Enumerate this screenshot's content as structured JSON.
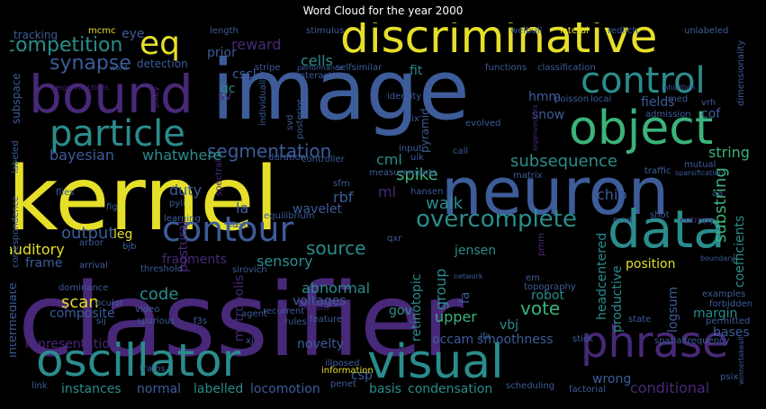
{
  "title": "Word Cloud for the year 2000",
  "colors": {
    "background": "#000000",
    "title": "#ffffff",
    "yellow": "#e6df2a",
    "blue": "#3d5c99",
    "teal": "#2b8c8c",
    "green": "#3bb37a",
    "purple": "#482878",
    "dark": "#30305a"
  },
  "words": [
    {
      "text": "classifier",
      "color": "#482878"
    },
    {
      "text": "kernel",
      "color": "#e6df2a"
    },
    {
      "text": "image",
      "color": "#3d5c99"
    },
    {
      "text": "neuron",
      "color": "#3d5c99"
    },
    {
      "text": "bound",
      "color": "#482878"
    },
    {
      "text": "discriminative",
      "color": "#e6df2a"
    },
    {
      "text": "object",
      "color": "#3bb37a"
    },
    {
      "text": "visual",
      "color": "#2b8c8c"
    },
    {
      "text": "oscillator",
      "color": "#2b8c8c"
    },
    {
      "text": "data",
      "color": "#2b8c8c"
    },
    {
      "text": "control",
      "color": "#2b8c8c"
    },
    {
      "text": "phrase",
      "color": "#482878"
    },
    {
      "text": "particle",
      "color": "#2b8c8c"
    },
    {
      "text": "contour",
      "color": "#3d5c99"
    },
    {
      "text": "eq",
      "color": "#e6df2a"
    },
    {
      "text": "overcomplete",
      "color": "#2b8c8c"
    },
    {
      "text": "competition",
      "color": "#2b8c8c"
    },
    {
      "text": "synapse",
      "color": "#3d5c99"
    },
    {
      "text": "segmentation",
      "color": "#3d5c99"
    },
    {
      "text": "subsequence",
      "color": "#2b8c8c"
    },
    {
      "text": "source",
      "color": "#2b8c8c"
    },
    {
      "text": "output",
      "color": "#3d5c99"
    },
    {
      "text": "spike",
      "color": "#3bb37a"
    },
    {
      "text": "reward",
      "color": "#482878"
    },
    {
      "text": "bayesian",
      "color": "#3d5c99"
    },
    {
      "text": "whatwhere",
      "color": "#2b8c8c"
    },
    {
      "text": "walk",
      "color": "#2b8c8c"
    },
    {
      "text": "string",
      "color": "#3bb37a"
    },
    {
      "text": "substring",
      "color": "#3bb37a"
    },
    {
      "text": "auditory",
      "color": "#e6df2a"
    },
    {
      "text": "scan",
      "color": "#e6df2a"
    },
    {
      "text": "vote",
      "color": "#3bb37a"
    },
    {
      "text": "code",
      "color": "#2b8c8c"
    },
    {
      "text": "sensory",
      "color": "#2b8c8c"
    },
    {
      "text": "abnormal",
      "color": "#2b8c8c"
    },
    {
      "text": "voltages",
      "color": "#3d5c99"
    },
    {
      "text": "group",
      "color": "#2b8c8c"
    },
    {
      "text": "upper",
      "color": "#3bb37a"
    },
    {
      "text": "robot",
      "color": "#2b8c8c"
    },
    {
      "text": "position",
      "color": "#e6df2a"
    },
    {
      "text": "jensen",
      "color": "#2b8c8c"
    },
    {
      "text": "wavelet",
      "color": "#3d5c99"
    },
    {
      "text": "fragments",
      "color": "#482878"
    },
    {
      "text": "chip",
      "color": "#3d5c99"
    },
    {
      "text": "duty",
      "color": "#3d5c99"
    },
    {
      "text": "rbf",
      "color": "#3d5c99"
    },
    {
      "text": "cml",
      "color": "#2b8c8c"
    },
    {
      "text": "cells",
      "color": "#2b8c8c"
    },
    {
      "text": "prior",
      "color": "#3d5c99"
    },
    {
      "text": "fit",
      "color": "#2b8c8c"
    },
    {
      "text": "cscl",
      "color": "#3d5c99"
    },
    {
      "text": "gc",
      "color": "#2b8c8c"
    },
    {
      "text": "fields",
      "color": "#3d5c99"
    },
    {
      "text": "cof",
      "color": "#3d5c99"
    },
    {
      "text": "hmm",
      "color": "#3d5c99"
    },
    {
      "text": "snow",
      "color": "#3d5c99"
    },
    {
      "text": "eye",
      "color": "#3d5c99"
    },
    {
      "text": "tracking",
      "color": "#3d5c99"
    },
    {
      "text": "detection",
      "color": "#3d5c99"
    },
    {
      "text": "subspace",
      "color": "#3d5c99"
    },
    {
      "text": "composite",
      "color": "#3d5c99"
    },
    {
      "text": "frame",
      "color": "#3d5c99"
    },
    {
      "text": "representation",
      "color": "#482878"
    },
    {
      "text": "intermediate",
      "color": "#3d5c99"
    },
    {
      "text": "instances",
      "color": "#2b8c8c"
    },
    {
      "text": "normal",
      "color": "#3d5c99"
    },
    {
      "text": "labelled",
      "color": "#2b8c8c"
    },
    {
      "text": "locomotion",
      "color": "#3d5c99"
    },
    {
      "text": "basis",
      "color": "#2b8c8c"
    },
    {
      "text": "condensation",
      "color": "#2b8c8c"
    },
    {
      "text": "csp",
      "color": "#3d5c99"
    },
    {
      "text": "smoothness",
      "color": "#3d5c99"
    },
    {
      "text": "occam",
      "color": "#3d5c99"
    },
    {
      "text": "vbj",
      "color": "#2b8c8c"
    },
    {
      "text": "wrong",
      "color": "#3d5c99"
    },
    {
      "text": "conditional",
      "color": "#482878"
    },
    {
      "text": "margin",
      "color": "#2b8c8c"
    },
    {
      "text": "bases",
      "color": "#3d5c99"
    },
    {
      "text": "logsum",
      "color": "#3d5c99"
    },
    {
      "text": "productive",
      "color": "#2b8c8c"
    },
    {
      "text": "headcentered",
      "color": "#2b8c8c"
    },
    {
      "text": "coefficients",
      "color": "#2b8c8c"
    },
    {
      "text": "novelty",
      "color": "#3d5c99"
    },
    {
      "text": "retinotopic",
      "color": "#2b8c8c"
    },
    {
      "text": "metropolis",
      "color": "#482878"
    },
    {
      "text": "postural",
      "color": "#482878"
    },
    {
      "text": "gov",
      "color": "#2b8c8c"
    },
    {
      "text": "leg",
      "color": "#e6df2a"
    },
    {
      "text": "la",
      "color": "#3d5c99"
    },
    {
      "text": "sv",
      "color": "#482878"
    },
    {
      "text": "ml",
      "color": "#482878"
    },
    {
      "text": "fa",
      "color": "#3d5c99"
    },
    {
      "text": "examples",
      "color": "#3d5c99"
    },
    {
      "text": "state",
      "color": "#3d5c99"
    },
    {
      "text": "mutual",
      "color": "#3d5c99"
    },
    {
      "text": "traffic",
      "color": "#3d5c99"
    },
    {
      "text": "topography",
      "color": "#3d5c99"
    },
    {
      "text": "xj",
      "color": "#3d5c99"
    },
    {
      "text": "feature",
      "color": "#3d5c99"
    },
    {
      "text": "f3s",
      "color": "#3d5c99"
    },
    {
      "text": "sij",
      "color": "#3d5c99"
    },
    {
      "text": "video",
      "color": "#3d5c99"
    },
    {
      "text": "ocular",
      "color": "#3d5c99"
    },
    {
      "text": "dominance",
      "color": "#3d5c99"
    },
    {
      "text": "spurious",
      "color": "#3d5c99"
    },
    {
      "text": "threshold",
      "color": "#3d5c99"
    },
    {
      "text": "arrival",
      "color": "#3d5c99"
    },
    {
      "text": "bjb",
      "color": "#3d5c99"
    },
    {
      "text": "arbor",
      "color": "#3d5c99"
    },
    {
      "text": "flies",
      "color": "#3d5c99"
    },
    {
      "text": "fig",
      "color": "#3d5c99"
    },
    {
      "text": "pyli",
      "color": "#3d5c99"
    },
    {
      "text": "learning",
      "color": "#3d5c99"
    },
    {
      "text": "iu",
      "color": "#3d5c99"
    },
    {
      "text": "equilibrium",
      "color": "#3d5c99"
    },
    {
      "text": "sfm",
      "color": "#3d5c99"
    },
    {
      "text": "controller",
      "color": "#3d5c99"
    },
    {
      "text": "measurements",
      "color": "#3d5c99"
    },
    {
      "text": "input",
      "color": "#3d5c99"
    },
    {
      "text": "uik",
      "color": "#3d5c99"
    },
    {
      "text": "hansen",
      "color": "#3d5c99"
    },
    {
      "text": "call",
      "color": "#3d5c99"
    },
    {
      "text": "matrix",
      "color": "#3d5c99"
    },
    {
      "text": "identity",
      "color": "#3d5c99"
    },
    {
      "text": "plix",
      "color": "#3d5c99"
    },
    {
      "text": "evolved",
      "color": "#3d5c99"
    },
    {
      "text": "poisson",
      "color": "#3d5c99"
    },
    {
      "text": "local",
      "color": "#3d5c99"
    },
    {
      "text": "admission",
      "color": "#3d5c99"
    },
    {
      "text": "med",
      "color": "#3d5c99"
    },
    {
      "text": "vrh",
      "color": "#3d5c99"
    },
    {
      "text": "inhibition",
      "color": "#3d5c99"
    },
    {
      "text": "dimensionality",
      "color": "#3d5c99"
    },
    {
      "text": "weibull",
      "color": "#3d5c99"
    },
    {
      "text": "lateral",
      "color": "#e6df2a"
    },
    {
      "text": "redlich",
      "color": "#3d5c99"
    },
    {
      "text": "unlabeled",
      "color": "#3d5c99"
    },
    {
      "text": "mcmc",
      "color": "#e6df2a"
    },
    {
      "text": "length",
      "color": "#3d5c99"
    },
    {
      "text": "stimulus",
      "color": "#3d5c99"
    },
    {
      "text": "interactions",
      "color": "#3d5c99"
    },
    {
      "text": "stripe",
      "color": "#3d5c99"
    },
    {
      "text": "performance",
      "color": "#3d5c99"
    },
    {
      "text": "selfsimilar",
      "color": "#3d5c99"
    },
    {
      "text": "functions",
      "color": "#3d5c99"
    },
    {
      "text": "classification",
      "color": "#3d5c99"
    },
    {
      "text": "word",
      "color": "#3d5c99"
    },
    {
      "text": "eigenfunctions",
      "color": "#482878"
    },
    {
      "text": "individuality",
      "color": "#3d5c99"
    },
    {
      "text": "svd",
      "color": "#3d5c99"
    },
    {
      "text": "posterior",
      "color": "#3d5c99"
    },
    {
      "text": "text",
      "color": "#3d5c99"
    },
    {
      "text": "policy",
      "color": "#482878"
    },
    {
      "text": "eigenvectors",
      "color": "#482878"
    },
    {
      "text": "labeled",
      "color": "#3d5c99"
    },
    {
      "text": "correspondence",
      "color": "#3d5c99"
    },
    {
      "text": "spectral",
      "color": "#482878"
    },
    {
      "text": "duration",
      "color": "#3d5c99"
    },
    {
      "text": "ncut",
      "color": "#3d5c99"
    },
    {
      "text": "shot",
      "color": "#3d5c99"
    },
    {
      "text": "entropy",
      "color": "#482878"
    },
    {
      "text": "aa",
      "color": "#3d5c99"
    },
    {
      "text": "sparsification",
      "color": "#3d5c99"
    },
    {
      "text": "sirovich",
      "color": "#3d5c99"
    },
    {
      "text": "network",
      "color": "#3d5c99"
    },
    {
      "text": "em",
      "color": "#3d5c99"
    },
    {
      "text": "recurrent",
      "color": "#3d5c99"
    },
    {
      "text": "rules",
      "color": "#3d5c99"
    },
    {
      "text": "agent",
      "color": "#3d5c99"
    },
    {
      "text": "lesions",
      "color": "#482878"
    },
    {
      "text": "illposed",
      "color": "#3d5c99"
    },
    {
      "text": "information",
      "color": "#e6df2a"
    },
    {
      "text": "trains",
      "color": "#3d5c99"
    },
    {
      "text": "link",
      "color": "#3d5c99"
    },
    {
      "text": "scheduling",
      "color": "#3d5c99"
    },
    {
      "text": "factorial",
      "color": "#3d5c99"
    },
    {
      "text": "stick",
      "color": "#3d5c99"
    },
    {
      "text": "spatialfrequency",
      "color": "#3d5c99"
    },
    {
      "text": "winnertakeall",
      "color": "#3d5c99"
    },
    {
      "text": "psix",
      "color": "#3d5c99"
    },
    {
      "text": "forbidden",
      "color": "#3d5c99"
    },
    {
      "text": "permitted",
      "color": "#3d5c99"
    },
    {
      "text": "boundary",
      "color": "#3d5c99"
    },
    {
      "text": "pmm",
      "color": "#482878"
    },
    {
      "text": "qxr",
      "color": "#3d5c99"
    },
    {
      "text": "pyramid",
      "color": "#3d5c99"
    },
    {
      "text": "ifa",
      "color": "#3d5c99"
    },
    {
      "text": "penet",
      "color": "#3d5c99"
    }
  ]
}
